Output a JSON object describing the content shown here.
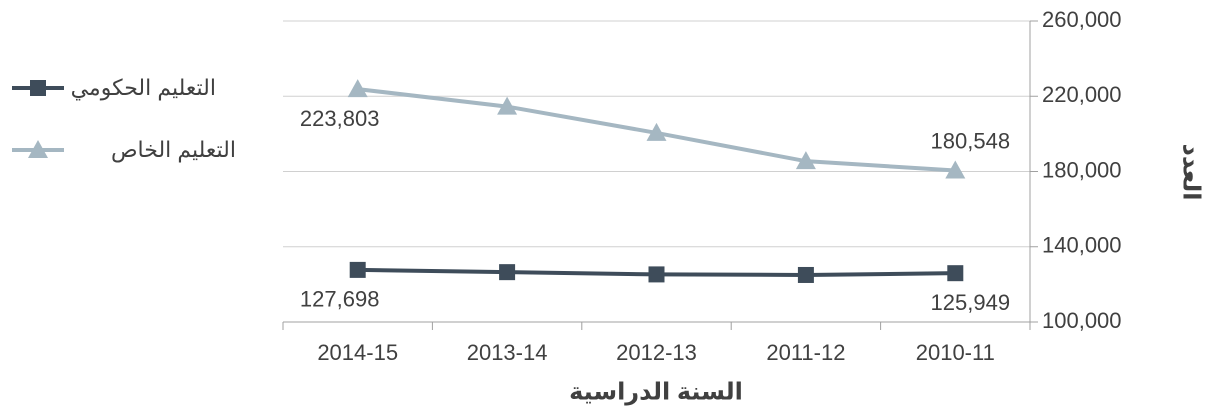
{
  "chart_data": {
    "type": "line",
    "x_label": "السنة الدراسية",
    "y_label": "العدد",
    "categories": [
      "2014-15",
      "2013-14",
      "2012-13",
      "2011-12",
      "2010-11"
    ],
    "series": [
      {
        "name": "التعليم الحكومي",
        "color": "#3e4c5a",
        "marker": "square",
        "values": [
          127698,
          126500,
          125300,
          125000,
          125949
        ],
        "value_labels": [
          "127,698",
          null,
          null,
          null,
          "125,949"
        ]
      },
      {
        "name": "التعليم الخاص",
        "color": "#a5b7c2",
        "marker": "triangle",
        "values": [
          223803,
          214500,
          200500,
          185500,
          180548
        ],
        "value_labels": [
          "223,803",
          null,
          null,
          null,
          "180,548"
        ]
      }
    ],
    "ylim": [
      100000,
      260000
    ],
    "yticks": [
      {
        "value": 100000,
        "label": "100,000"
      },
      {
        "value": 140000,
        "label": "140,000"
      },
      {
        "value": 180000,
        "label": "180,000"
      },
      {
        "value": 220000,
        "label": "220,000"
      },
      {
        "value": 260000,
        "label": "260,000"
      }
    ],
    "grid": true,
    "legend": "left"
  }
}
